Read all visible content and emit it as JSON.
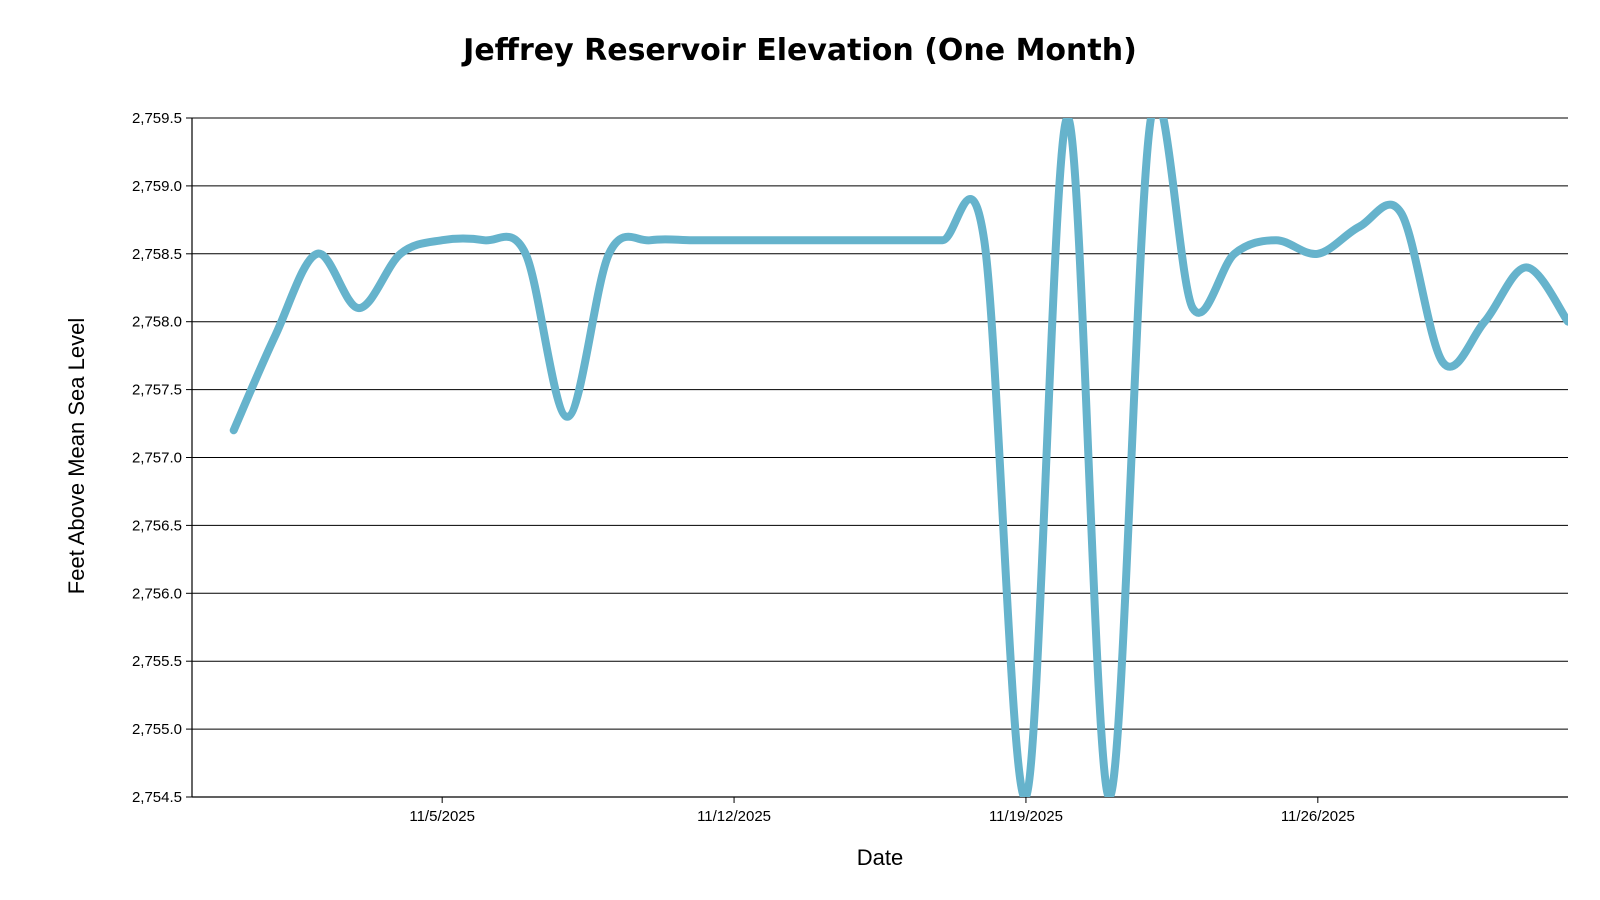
{
  "chart_data": {
    "type": "line",
    "title": "Jeffrey Reservoir Elevation (One Month)",
    "xlabel": "Date",
    "ylabel": "Feet Above Mean Sea Level",
    "ylim": [
      2754.5,
      2759.5
    ],
    "yticks": [
      2754.5,
      2755.0,
      2755.5,
      2756.0,
      2756.5,
      2757.0,
      2757.5,
      2758.0,
      2758.5,
      2759.0,
      2759.5
    ],
    "ytick_labels": [
      "2,754.5",
      "2,755.0",
      "2,755.5",
      "2,756.0",
      "2,756.5",
      "2,757.0",
      "2,757.5",
      "2,758.0",
      "2,758.5",
      "2,759.0",
      "2,759.5"
    ],
    "xlim": [
      "2025-10-30",
      "2025-12-02"
    ],
    "xticks": [
      "2025-11-05",
      "2025-11-12",
      "2025-11-19",
      "2025-11-26"
    ],
    "xtick_labels": [
      "11/5/2025",
      "11/12/2025",
      "11/19/2025",
      "11/26/2025"
    ],
    "grid": true,
    "color": "#66b3cc",
    "series": [
      {
        "points": [
          [
            "2025-10-31",
            2757.2
          ],
          [
            "2025-11-01",
            2757.9
          ],
          [
            "2025-11-02",
            2758.5
          ],
          [
            "2025-11-03",
            2758.1
          ],
          [
            "2025-11-04",
            2758.5
          ],
          [
            "2025-11-05",
            2758.6
          ],
          [
            "2025-11-06",
            2758.6
          ],
          [
            "2025-11-07",
            2758.5
          ],
          [
            "2025-11-08",
            2757.3
          ],
          [
            "2025-11-09",
            2758.5
          ],
          [
            "2025-11-10",
            2758.6
          ],
          [
            "2025-11-11",
            2758.6
          ],
          [
            "2025-11-12",
            2758.6
          ],
          [
            "2025-11-13",
            2758.6
          ],
          [
            "2025-11-14",
            2758.6
          ],
          [
            "2025-11-15",
            2758.6
          ],
          [
            "2025-11-16",
            2758.6
          ],
          [
            "2025-11-17",
            2758.6
          ],
          [
            "2025-11-18",
            2758.6
          ],
          [
            "2025-11-19",
            2754.5
          ],
          [
            "2025-11-20",
            2759.5
          ],
          [
            "2025-11-21",
            2754.5
          ],
          [
            "2025-11-22",
            2759.5
          ],
          [
            "2025-11-23",
            2758.1
          ],
          [
            "2025-11-24",
            2758.5
          ],
          [
            "2025-11-25",
            2758.6
          ],
          [
            "2025-11-26",
            2758.5
          ],
          [
            "2025-11-27",
            2758.7
          ],
          [
            "2025-11-28",
            2758.8
          ],
          [
            "2025-11-29",
            2757.7
          ],
          [
            "2025-11-30",
            2758.0
          ],
          [
            "2025-12-01",
            2758.4
          ],
          [
            "2025-12-02",
            2758.0
          ]
        ]
      }
    ]
  }
}
